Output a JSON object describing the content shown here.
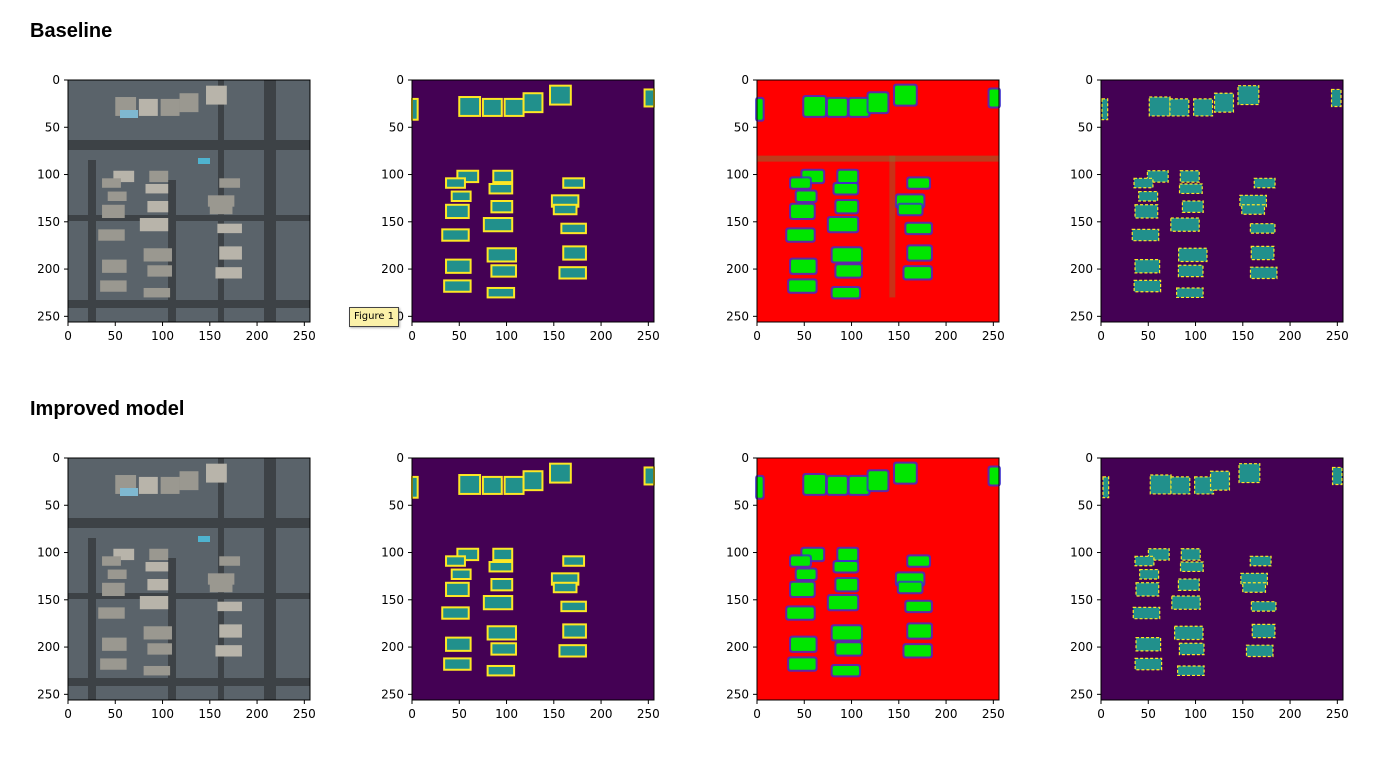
{
  "sections": [
    {
      "title": "Baseline"
    },
    {
      "title": "Improved model"
    }
  ],
  "tooltip": {
    "label": "Figure 1"
  },
  "axis_ticks": {
    "x": [
      "0",
      "50",
      "100",
      "150",
      "200",
      "250"
    ],
    "y": [
      "0",
      "50",
      "100",
      "150",
      "200",
      "250"
    ]
  },
  "panel_types": [
    "satellite-image",
    "ground-truth-mask",
    "probability-heatmap",
    "predicted-mask"
  ],
  "colors": {
    "mask_background": "#440154",
    "mask_building": "#21908c",
    "mask_outline": "#fde725",
    "heatmap_background": "#ff0000",
    "heatmap_building": "#00e600",
    "heatmap_edge": "#3b2fd0"
  }
}
